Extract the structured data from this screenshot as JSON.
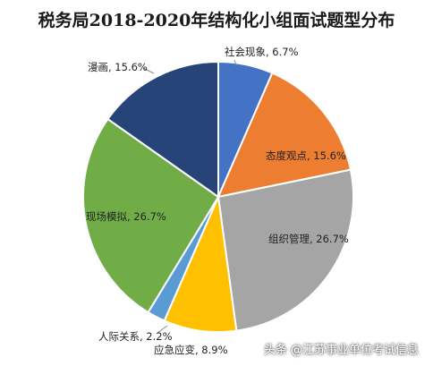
{
  "chart_data": {
    "type": "pie",
    "title": "税务局2018-2020年结构化小组面试题型分布",
    "slices": [
      {
        "label": "社会现象",
        "value": 6.7,
        "display": "6.7%",
        "color": "#4472C4"
      },
      {
        "label": "态度观点",
        "value": 15.6,
        "display": "15.6%",
        "color": "#ED7D31"
      },
      {
        "label": "组织管理",
        "value": 26.7,
        "display": "26.7%",
        "color": "#A5A5A5"
      },
      {
        "label": "应急应变",
        "value": 8.9,
        "display": "8.9%",
        "color": "#FFC000"
      },
      {
        "label": "人际关系",
        "value": 2.2,
        "display": "2.2%",
        "color": "#5B9BD5"
      },
      {
        "label": "现场模拟",
        "value": 26.7,
        "display": "26.7%",
        "color": "#70AD47"
      },
      {
        "label": "漫画",
        "value": 15.6,
        "display": "15.6%",
        "color": "#264478"
      }
    ],
    "start_angle_deg": 0,
    "direction": "clockwise"
  },
  "watermark": "头条 @江苏事业单位考试信息"
}
